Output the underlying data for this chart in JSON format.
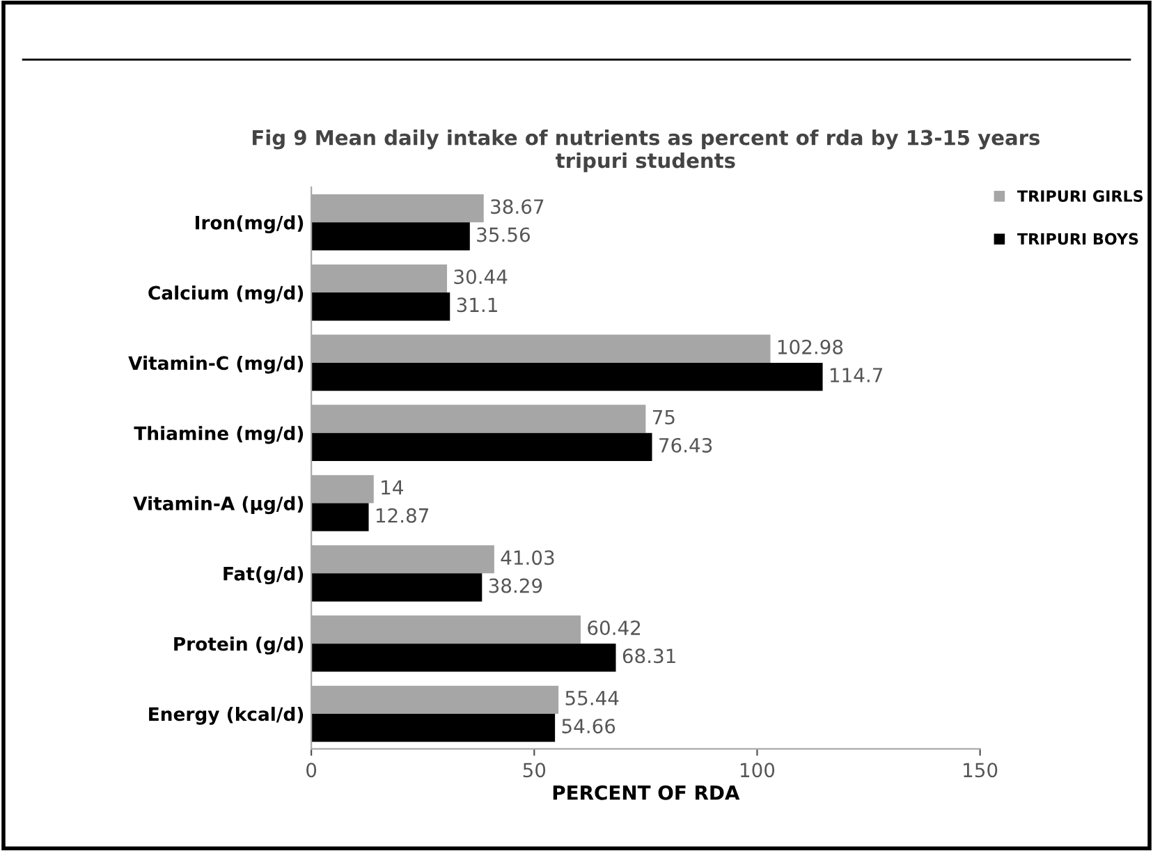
{
  "chart_data": {
    "type": "bar",
    "orientation": "horizontal",
    "title": "Fig 9 Mean daily intake of nutrients as percent of rda by 13-15 years\ntripuri students",
    "xlabel": "PERCENT OF RDA",
    "categories": [
      "Iron(mg/d)",
      "Calcium (mg/d)",
      "Vitamin-C (mg/d)",
      "Thiamine (mg/d)",
      "Vitamin-A (µg/d)",
      "Fat(g/d)",
      "Protein (g/d)",
      "Energy (kcal/d)"
    ],
    "series": [
      {
        "name": "TRIPURI GIRLS",
        "color": "#a6a6a6",
        "values": [
          38.67,
          30.44,
          102.98,
          75,
          14,
          41.03,
          60.42,
          55.44
        ]
      },
      {
        "name": "TRIPURI BOYS",
        "color": "#000000",
        "values": [
          35.56,
          31.1,
          114.7,
          76.43,
          12.87,
          38.29,
          68.31,
          54.66
        ]
      }
    ],
    "xlim": [
      0,
      150
    ],
    "xticks": [
      0,
      50,
      100,
      150
    ],
    "data_labels": true,
    "legend": "top right",
    "grid": false
  }
}
